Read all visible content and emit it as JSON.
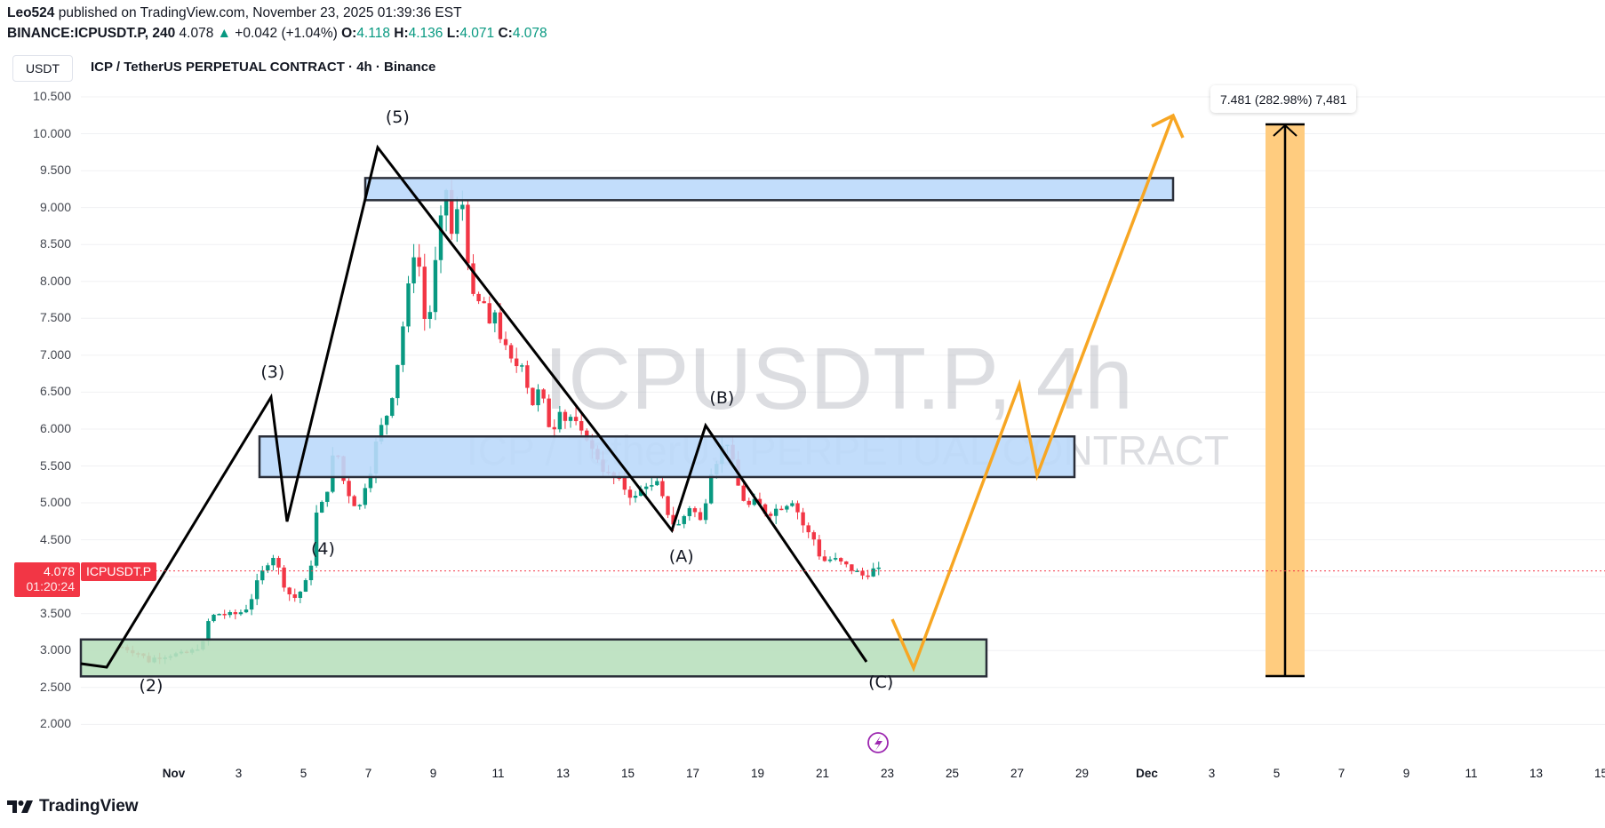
{
  "header": {
    "author": "Leo524",
    "published_text": "published on TradingView.com, November 23, 2025 01:39:36 EST",
    "symbol": "BINANCE:ICPUSDT.P, 240",
    "last": "4.078",
    "change": "+0.042 (+1.04%)",
    "o_label": "O:",
    "o": "4.118",
    "h_label": "H:",
    "h": "4.136",
    "l_label": "L:",
    "l": "4.071",
    "c_label": "C:",
    "c": "4.078"
  },
  "currency_button": "USDT",
  "chart_title": "ICP / TetherUS PERPETUAL CONTRACT · 4h · Binance",
  "watermark": {
    "line1": "ICPUSDT.P, 4h",
    "line2": "ICP / TetherUS PERPETUAL CONTRACT"
  },
  "price_tag": {
    "price": "4.078",
    "countdown": "01:20:24",
    "symbol": "ICPUSDT.P"
  },
  "measure_label": "7.481 (282.98%) 7,481",
  "branding": "TradingView",
  "colors": {
    "up": "#089981",
    "down": "#F23645",
    "zone_blue": "#BBD9FB",
    "zone_green": "#B9E0BE",
    "projection": "#F7A623",
    "range_bar": "#FFC978"
  },
  "chart_data": {
    "type": "candlestick",
    "title": "ICP / TetherUS PERPETUAL CONTRACT · 4h · Binance",
    "xlabel": "",
    "ylabel": "USDT",
    "ylim": [
      1.7,
      10.8
    ],
    "y_ticks": [
      "10.500",
      "10.000",
      "9.500",
      "9.000",
      "8.500",
      "8.000",
      "7.500",
      "7.000",
      "6.500",
      "6.000",
      "5.500",
      "5.000",
      "4.500",
      "4.000",
      "3.500",
      "3.000",
      "2.500",
      "2.000"
    ],
    "x_ticks": [
      {
        "label": "Nov",
        "day": 1,
        "bold": true
      },
      {
        "label": "3",
        "day": 3
      },
      {
        "label": "5",
        "day": 5
      },
      {
        "label": "7",
        "day": 7
      },
      {
        "label": "9",
        "day": 9
      },
      {
        "label": "11",
        "day": 11
      },
      {
        "label": "13",
        "day": 13
      },
      {
        "label": "15",
        "day": 15
      },
      {
        "label": "17",
        "day": 17
      },
      {
        "label": "19",
        "day": 19
      },
      {
        "label": "21",
        "day": 21
      },
      {
        "label": "23",
        "day": 23
      },
      {
        "label": "25",
        "day": 25
      },
      {
        "label": "27",
        "day": 27
      },
      {
        "label": "29",
        "day": 29
      },
      {
        "label": "Dec",
        "day": 31,
        "bold": true
      },
      {
        "label": "3",
        "day": 33
      },
      {
        "label": "5",
        "day": 35
      },
      {
        "label": "7",
        "day": 37
      },
      {
        "label": "9",
        "day": 39
      },
      {
        "label": "11",
        "day": 41
      },
      {
        "label": "13",
        "day": 43
      },
      {
        "label": "15",
        "day": 45
      }
    ],
    "close_path": [
      [
        -0.6,
        3.05
      ],
      [
        -0.3,
        3.0
      ],
      [
        0.0,
        2.95
      ],
      [
        0.2,
        2.85
      ],
      [
        0.4,
        2.9
      ],
      [
        0.7,
        2.93
      ],
      [
        1.0,
        2.95
      ],
      [
        1.3,
        2.95
      ],
      [
        1.6,
        3.0
      ],
      [
        1.9,
        3.1
      ],
      [
        2.1,
        3.45
      ],
      [
        2.4,
        3.5
      ],
      [
        2.7,
        3.48
      ],
      [
        3.0,
        3.5
      ],
      [
        3.3,
        3.6
      ],
      [
        3.6,
        3.95
      ],
      [
        3.9,
        4.2
      ],
      [
        4.1,
        4.3
      ],
      [
        4.3,
        4.0
      ],
      [
        4.5,
        3.8
      ],
      [
        4.7,
        3.7
      ],
      [
        5.0,
        3.85
      ],
      [
        5.2,
        4.05
      ],
      [
        5.4,
        4.85
      ],
      [
        5.6,
        5.0
      ],
      [
        5.8,
        5.3
      ],
      [
        6.0,
        5.9
      ],
      [
        6.1,
        5.5
      ],
      [
        6.3,
        5.2
      ],
      [
        6.5,
        5.05
      ],
      [
        6.7,
        4.9
      ],
      [
        6.9,
        5.25
      ],
      [
        7.1,
        5.5
      ],
      [
        7.3,
        5.95
      ],
      [
        7.5,
        6.1
      ],
      [
        7.7,
        6.4
      ],
      [
        7.9,
        6.9
      ],
      [
        8.1,
        7.5
      ],
      [
        8.3,
        8.1
      ],
      [
        8.45,
        8.55
      ],
      [
        8.6,
        8.1
      ],
      [
        8.8,
        7.2
      ],
      [
        9.0,
        8.0
      ],
      [
        9.2,
        8.7
      ],
      [
        9.4,
        9.25
      ],
      [
        9.55,
        8.6
      ],
      [
        9.7,
        8.9
      ],
      [
        9.9,
        9.05
      ],
      [
        10.1,
        8.2
      ],
      [
        10.3,
        7.5
      ],
      [
        10.5,
        7.9
      ],
      [
        10.7,
        7.3
      ],
      [
        10.9,
        7.6
      ],
      [
        11.1,
        7.2
      ],
      [
        11.3,
        7.0
      ],
      [
        11.5,
        6.8
      ],
      [
        11.7,
        7.0
      ],
      [
        11.9,
        6.6
      ],
      [
        12.1,
        6.3
      ],
      [
        12.3,
        6.6
      ],
      [
        12.5,
        6.1
      ],
      [
        12.7,
        6.0
      ],
      [
        12.9,
        6.3
      ],
      [
        13.1,
        6.1
      ],
      [
        13.3,
        6.2
      ],
      [
        13.5,
        5.9
      ],
      [
        13.7,
        5.95
      ],
      [
        13.9,
        5.7
      ],
      [
        14.1,
        5.6
      ],
      [
        14.3,
        5.4
      ],
      [
        14.5,
        5.35
      ],
      [
        14.7,
        5.3
      ],
      [
        14.9,
        5.2
      ],
      [
        15.1,
        5.1
      ],
      [
        15.3,
        5.05
      ],
      [
        15.5,
        5.3
      ],
      [
        15.7,
        5.2
      ],
      [
        15.9,
        5.25
      ],
      [
        16.1,
        5.0
      ],
      [
        16.3,
        4.8
      ],
      [
        16.5,
        4.65
      ],
      [
        16.7,
        4.8
      ],
      [
        16.9,
        4.95
      ],
      [
        17.1,
        4.85
      ],
      [
        17.3,
        4.7
      ],
      [
        17.5,
        5.4
      ],
      [
        17.7,
        5.55
      ],
      [
        17.9,
        5.75
      ],
      [
        18.1,
        5.85
      ],
      [
        18.3,
        5.35
      ],
      [
        18.5,
        5.1
      ],
      [
        18.7,
        4.95
      ],
      [
        18.9,
        5.0
      ],
      [
        19.1,
        4.95
      ],
      [
        19.3,
        4.85
      ],
      [
        19.5,
        4.9
      ],
      [
        19.7,
        4.95
      ],
      [
        19.9,
        5.0
      ],
      [
        20.1,
        5.05
      ],
      [
        20.3,
        4.8
      ],
      [
        20.5,
        4.6
      ],
      [
        20.7,
        4.55
      ],
      [
        20.9,
        4.3
      ],
      [
        21.1,
        4.2
      ],
      [
        21.3,
        4.25
      ],
      [
        21.5,
        4.2
      ],
      [
        21.7,
        4.15
      ],
      [
        21.9,
        4.1
      ],
      [
        22.1,
        4.05
      ],
      [
        22.3,
        4.0
      ],
      [
        22.5,
        4.1
      ],
      [
        22.7,
        4.078
      ]
    ],
    "annotations": {
      "waves": [
        {
          "label": "(2)",
          "day": 0.3,
          "price": 2.45
        },
        {
          "label": "(3)",
          "day": 4.05,
          "price": 6.7
        },
        {
          "label": "(4)",
          "day": 5.6,
          "price": 4.3
        },
        {
          "label": "(5)",
          "day": 7.9,
          "price": 10.15
        },
        {
          "label": "(A)",
          "day": 16.65,
          "price": 4.2
        },
        {
          "label": "(B)",
          "day": 17.9,
          "price": 6.35
        },
        {
          "label": "(C)",
          "day": 22.8,
          "price": 2.5
        }
      ],
      "zones": [
        {
          "name": "resistance-zone-top",
          "from_price": 9.1,
          "to_price": 9.4,
          "color": "blue"
        },
        {
          "name": "resistance-zone-mid",
          "from_price": 5.35,
          "to_price": 5.9,
          "color": "blue"
        },
        {
          "name": "support-zone",
          "from_price": 2.65,
          "to_price": 3.15,
          "color": "green"
        }
      ],
      "current_price": 4.078,
      "measure": {
        "from": 2.64,
        "to": 10.12,
        "change": "7.481",
        "percent": "282.98%",
        "ticks": "7,481"
      }
    }
  }
}
